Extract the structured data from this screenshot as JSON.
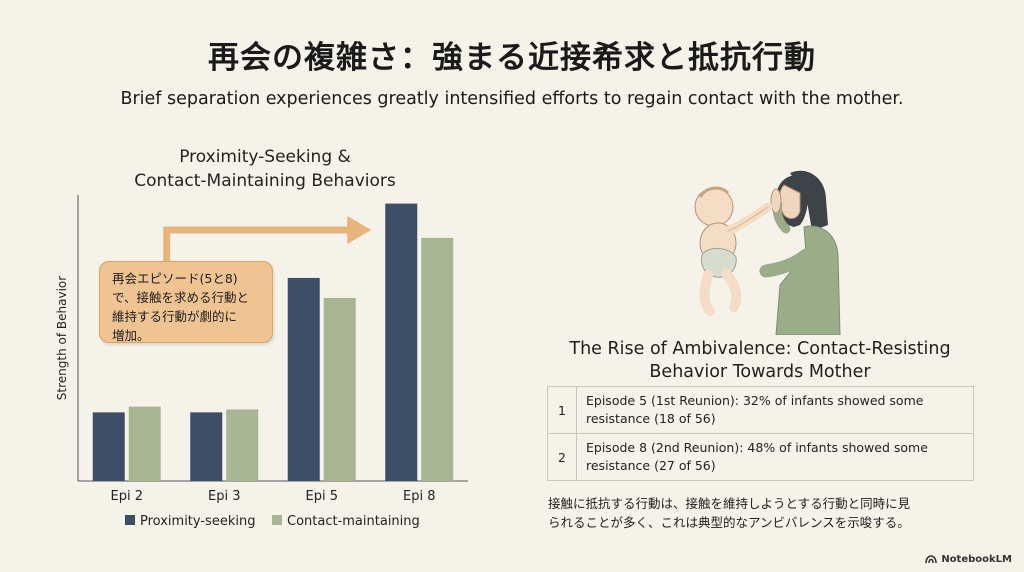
{
  "header": {
    "title": "再会の複雑さ：強まる近接希求と抵抗行動",
    "subtitle": "Brief separation experiences greatly intensified efforts to regain contact with the mother."
  },
  "chart_data": {
    "type": "bar",
    "title_line1": "Proximity-Seeking &",
    "title_line2": "Contact-Maintaining Behaviors",
    "ylabel": "Strength of Behavior",
    "xlabel": "",
    "categories": [
      "Epi 2",
      "Epi 3",
      "Epi 5",
      "Epi 8"
    ],
    "series": [
      {
        "name": "Proximity-seeking",
        "values": [
          24,
          24,
          71,
          97
        ]
      },
      {
        "name": "Contact-maintaining",
        "values": [
          26,
          25,
          64,
          85
        ]
      }
    ],
    "ylim": [
      0,
      100
    ],
    "grid": false,
    "legend": "bottom",
    "colors": [
      "#3d4f66",
      "#a8b592"
    ],
    "annotation": "再会エピソード(5と8)で、接触を求める行動と維持する行動が劇的に増加。"
  },
  "callout": {
    "line1": "再会エピソード(5と8)",
    "line2": "で、接触を求める行動と",
    "line3": "維持する行動が劇的に",
    "line4": "増加。"
  },
  "resistance": {
    "title_line1": "The Rise of Ambivalence: Contact-Resisting",
    "title_line2": "Behavior Towards Mother",
    "rows": [
      {
        "num": "1",
        "text": "Episode 5 (1st Reunion): 32% of infants showed some resistance (18 of 56)"
      },
      {
        "num": "2",
        "text": "Episode 8 (2nd Reunion): 48% of infants showed some resistance (27 of 56)"
      }
    ],
    "note_line1": "接触に抵抗する行動は、接触を維持しようとする行動と同時に見",
    "note_line2": "られることが多く、これは典型的なアンビバレンスを示唆する。"
  },
  "illustration": {
    "icon": "mother-reaching-for-infant-illustration"
  },
  "brand": {
    "label": "NotebookLM",
    "icon": "notebooklm-logo-icon"
  }
}
